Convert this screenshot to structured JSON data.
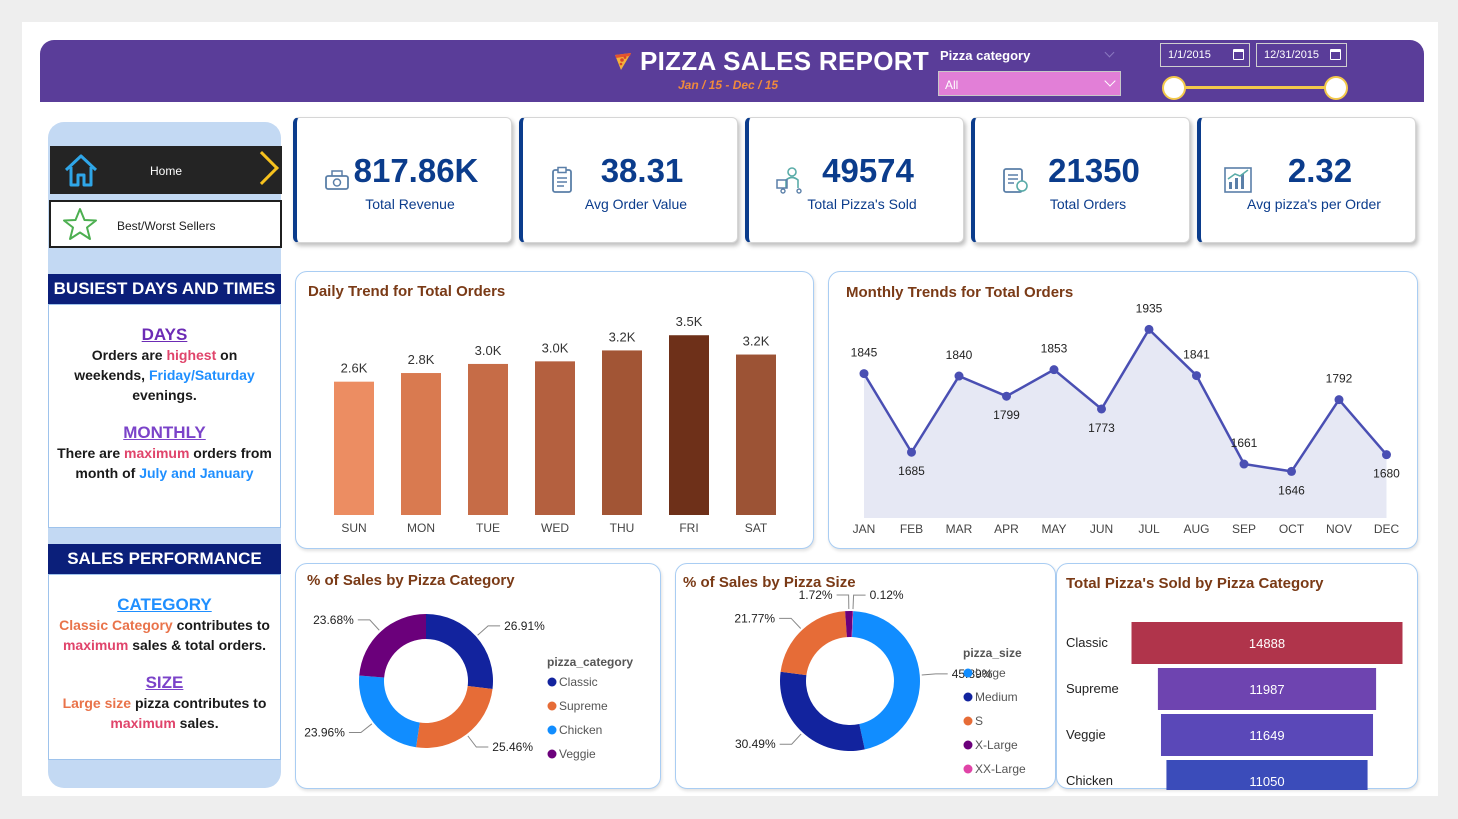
{
  "header": {
    "title": "PIZZA SALES REPORT",
    "subtitle": "Jan / 15 - Dec / 15",
    "filter_label": "Pizza category",
    "filter_value": "All",
    "date_start": "1/1/2015",
    "date_end": "12/31/2015"
  },
  "nav": {
    "home": "Home",
    "best_worst": "Best/Worst Sellers"
  },
  "busiest": {
    "heading": "BUSIEST DAYS AND TIMES",
    "days_title": "DAYS",
    "days_t1": "Orders are ",
    "days_t2": "highest",
    "days_t3": " on weekends, ",
    "days_t4": "Friday/Saturday",
    "days_t5": " evenings.",
    "monthly_title": "MONTHLY",
    "monthly_t1": "There are ",
    "monthly_t2": "maximum",
    "monthly_t3": " orders from month of ",
    "monthly_t4": "July and January"
  },
  "performance": {
    "heading": "SALES PERFORMANCE",
    "category_title": "CATEGORY",
    "cat_t1": "Classic Category",
    "cat_t2": " contributes to ",
    "cat_t3": "maximum",
    "cat_t4": " sales & total orders.",
    "size_title": "SIZE",
    "size_t1": "Large size",
    "size_t2": " pizza contributes to ",
    "size_t3": "maximum",
    "size_t4": " sales."
  },
  "kpis": [
    {
      "value": "817.86K",
      "label": "Total Revenue",
      "icon": "money-icon"
    },
    {
      "value": "38.31",
      "label": "Avg Order Value",
      "icon": "clipboard-icon"
    },
    {
      "value": "49574",
      "label": "Total Pizza's Sold",
      "icon": "delivery-icon"
    },
    {
      "value": "21350",
      "label": "Total Orders",
      "icon": "order-list-icon"
    },
    {
      "value": "2.32",
      "label": "Avg pizza's per Order",
      "icon": "growth-chart-icon"
    }
  ],
  "colors": {
    "header": "#5a3d99",
    "kpi_accent": "#0b3c8c",
    "title_brown": "#7a3a16"
  },
  "chart_data": [
    {
      "type": "bar",
      "title": "Daily Trend for Total Orders",
      "categories": [
        "SUN",
        "MON",
        "TUE",
        "WED",
        "THU",
        "FRI",
        "SAT"
      ],
      "values": [
        2624,
        2794,
        2973,
        3024,
        3239,
        3538,
        3158
      ],
      "data_labels": [
        "2.6K",
        "2.8K",
        "3.0K",
        "3.0K",
        "3.2K",
        "3.5K",
        "3.2K"
      ],
      "colors": [
        "#ec8d62",
        "#d97a50",
        "#c66c47",
        "#b4603f",
        "#a25535",
        "#6e3019",
        "#9c5335"
      ],
      "ylim": [
        0,
        3700
      ]
    },
    {
      "type": "area",
      "title": "Monthly Trends for Total Orders",
      "categories": [
        "JAN",
        "FEB",
        "MAR",
        "APR",
        "MAY",
        "JUN",
        "JUL",
        "AUG",
        "SEP",
        "OCT",
        "NOV",
        "DEC"
      ],
      "values": [
        1845,
        1685,
        1840,
        1799,
        1853,
        1773,
        1935,
        1841,
        1661,
        1646,
        1792,
        1680
      ],
      "ylim": [
        1600,
        1950
      ]
    },
    {
      "type": "pie",
      "title": "% of Sales by Pizza Category",
      "legend_title": "pizza_category",
      "labels": [
        "Classic",
        "Supreme",
        "Chicken",
        "Veggie"
      ],
      "values": [
        26.91,
        25.46,
        23.96,
        23.68
      ],
      "value_labels": [
        "26.91%",
        "25.46%",
        "23.96%",
        "23.68%"
      ],
      "colors": [
        "#12239e",
        "#e66c37",
        "#118dff",
        "#6b007b"
      ]
    },
    {
      "type": "pie",
      "title": "% of Sales by Pizza Size",
      "legend_title": "pizza_size",
      "labels": [
        "Large",
        "Medium",
        "S",
        "X-Large",
        "XX-Large"
      ],
      "values": [
        45.89,
        30.49,
        21.77,
        1.72,
        0.12
      ],
      "value_labels": [
        "45.89%",
        "30.49%",
        "21.77%",
        "1.72%",
        "0.12%"
      ],
      "colors": [
        "#118dff",
        "#12239e",
        "#e66c37",
        "#6b007b",
        "#e044a7"
      ]
    },
    {
      "type": "bar",
      "title": "Total Pizza's Sold by Pizza Category",
      "orientation": "horizontal",
      "categories": [
        "Classic",
        "Supreme",
        "Veggie",
        "Chicken"
      ],
      "values": [
        14888,
        11987,
        11649,
        11050
      ],
      "colors": [
        "#b0344b",
        "#6e44b0",
        "#5a48b8",
        "#3b4cba"
      ]
    }
  ]
}
